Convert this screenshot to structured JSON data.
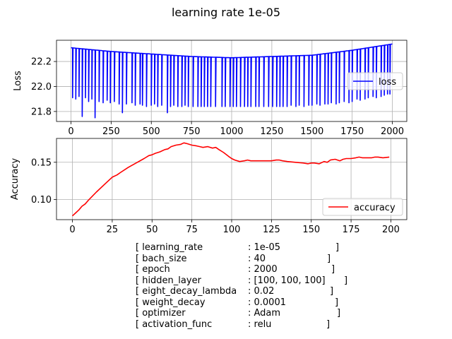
{
  "chart_data": [
    {
      "type": "line",
      "title": "learning rate 1e-05",
      "xlabel": "",
      "ylabel": "Loss",
      "xlim": [
        -90,
        2090
      ],
      "ylim": [
        21.72,
        22.37
      ],
      "xticks": [
        "0",
        "250",
        "500",
        "750",
        "1000",
        "1250",
        "1500",
        "1750",
        "2000"
      ],
      "yticks": [
        "21.8",
        "22.0",
        "22.2"
      ],
      "grid": true,
      "legend": "right",
      "series": [
        {
          "name": "loss",
          "color": "#0000ff",
          "trend_x": [
            0,
            250,
            500,
            750,
            1000,
            1250,
            1500,
            1750,
            2000
          ],
          "trend_y": [
            22.31,
            22.28,
            22.26,
            22.24,
            22.23,
            22.24,
            22.25,
            22.29,
            22.34
          ],
          "dips_x": [
            10,
            30,
            50,
            70,
            90,
            110,
            130,
            150,
            175,
            200,
            225,
            245,
            270,
            300,
            320,
            345,
            380,
            400,
            430,
            445,
            470,
            500,
            520,
            540,
            565,
            600,
            620,
            640,
            665,
            690,
            710,
            730,
            760,
            790,
            810,
            830,
            850,
            870,
            900,
            940,
            960,
            990,
            1010,
            1030,
            1055,
            1080,
            1100,
            1120,
            1150,
            1170,
            1200,
            1230,
            1255,
            1280,
            1300,
            1320,
            1345,
            1370,
            1400,
            1420,
            1450,
            1480,
            1500,
            1530,
            1550,
            1580,
            1600,
            1620,
            1650,
            1670,
            1700,
            1730,
            1750,
            1780,
            1800,
            1830,
            1850,
            1880,
            1900,
            1930,
            1950,
            1970,
            1985
          ],
          "dips_y": [
            21.91,
            21.9,
            21.92,
            21.76,
            21.91,
            21.88,
            21.9,
            21.75,
            21.88,
            21.87,
            21.89,
            21.87,
            21.88,
            21.86,
            21.79,
            21.86,
            21.87,
            21.85,
            21.86,
            21.85,
            21.84,
            21.85,
            21.86,
            21.84,
            21.85,
            21.79,
            21.84,
            21.85,
            21.84,
            21.84,
            21.85,
            21.84,
            21.84,
            21.84,
            21.84,
            21.84,
            21.84,
            21.84,
            21.84,
            21.84,
            21.84,
            21.84,
            21.84,
            21.84,
            21.84,
            21.84,
            21.84,
            21.84,
            21.84,
            21.84,
            21.84,
            21.84,
            21.84,
            21.84,
            21.84,
            21.84,
            21.84,
            21.85,
            21.84,
            21.85,
            21.84,
            21.85,
            21.85,
            21.86,
            21.85,
            21.86,
            21.86,
            21.87,
            21.86,
            21.87,
            21.88,
            21.87,
            21.88,
            21.9,
            21.89,
            21.9,
            21.91,
            21.92,
            21.91,
            21.92,
            21.93,
            21.94,
            21.94
          ]
        }
      ]
    },
    {
      "type": "line",
      "title": "",
      "xlabel": "",
      "ylabel": "Accuracy",
      "xlim": [
        -10,
        210
      ],
      "ylim": [
        0.073,
        0.182
      ],
      "xticks": [
        "0",
        "25",
        "50",
        "75",
        "100",
        "125",
        "150",
        "175",
        "200"
      ],
      "yticks": [
        "0.10",
        "0.15"
      ],
      "grid": true,
      "legend": "lower-right",
      "series": [
        {
          "name": "accuracy",
          "color": "#ff0000",
          "x": [
            0,
            2,
            4,
            6,
            8,
            10,
            15,
            20,
            25,
            28,
            30,
            35,
            40,
            45,
            48,
            50,
            52,
            55,
            58,
            60,
            62,
            65,
            68,
            70,
            72,
            75,
            78,
            80,
            82,
            85,
            88,
            90,
            92,
            95,
            98,
            100,
            102,
            105,
            108,
            110,
            112,
            115,
            120,
            125,
            128,
            130,
            132,
            135,
            140,
            145,
            148,
            150,
            152,
            155,
            158,
            160,
            162,
            165,
            168,
            170,
            172,
            175,
            178,
            180,
            182,
            185,
            188,
            190,
            192,
            195,
            199
          ],
          "y": [
            0.078,
            0.082,
            0.086,
            0.091,
            0.094,
            0.099,
            0.11,
            0.12,
            0.13,
            0.133,
            0.136,
            0.143,
            0.149,
            0.155,
            0.159,
            0.16,
            0.162,
            0.164,
            0.167,
            0.168,
            0.171,
            0.173,
            0.174,
            0.176,
            0.175,
            0.173,
            0.172,
            0.171,
            0.17,
            0.171,
            0.169,
            0.17,
            0.167,
            0.163,
            0.158,
            0.155,
            0.153,
            0.151,
            0.152,
            0.153,
            0.152,
            0.152,
            0.152,
            0.152,
            0.153,
            0.153,
            0.152,
            0.151,
            0.15,
            0.149,
            0.148,
            0.149,
            0.149,
            0.148,
            0.151,
            0.15,
            0.153,
            0.154,
            0.152,
            0.154,
            0.155,
            0.155,
            0.156,
            0.157,
            0.156,
            0.156,
            0.156,
            0.157,
            0.157,
            0.156,
            0.157
          ]
        }
      ]
    }
  ],
  "params": [
    {
      "key": "[ learning_rate",
      "value": ": 1e-05",
      "close": "]"
    },
    {
      "key": "[ bach_size",
      "value": ": 40",
      "close": "]"
    },
    {
      "key": "[ epoch",
      "value": ": 2000",
      "close": "]"
    },
    {
      "key": "[ hidden_layer",
      "value": ": [100, 100, 100]",
      "close": "]"
    },
    {
      "key": "[ eight_decay_lambda",
      "value": ": 0.02",
      "close": "]"
    },
    {
      "key": "[ weight_decay",
      "value": ": 0.0001",
      "close": "]"
    },
    {
      "key": "[ optimizer",
      "value": ": Adam",
      "close": "]"
    },
    {
      "key": "[ activation_func",
      "value": ": relu",
      "close": "]"
    }
  ]
}
